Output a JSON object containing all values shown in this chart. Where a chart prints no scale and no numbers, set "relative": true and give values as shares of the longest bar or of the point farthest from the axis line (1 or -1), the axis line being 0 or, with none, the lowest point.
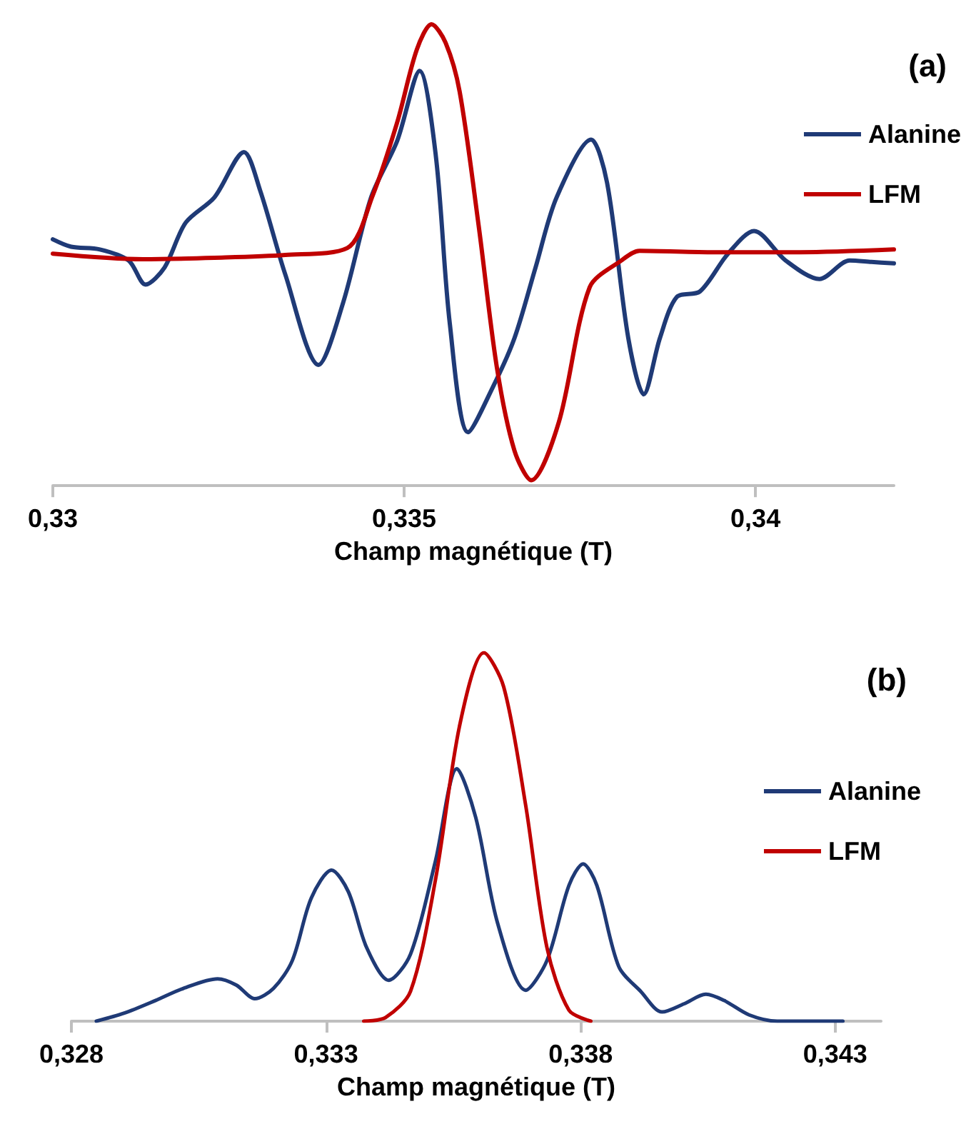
{
  "chart_data": [
    {
      "type": "line",
      "title": "(a)",
      "xlabel": "Champ magnétique (T)",
      "relative": true,
      "grid": false,
      "legend": "right",
      "marker": "none",
      "line_style": "solid",
      "tick_labels": "x",
      "xlim": [
        0.33,
        0.34197
      ],
      "xticks": [
        {
          "value": 0.33,
          "label": "0,33"
        },
        {
          "value": 0.335,
          "label": "0,335"
        },
        {
          "value": 0.34,
          "label": "0,34"
        }
      ],
      "series": [
        {
          "name": "Alanine",
          "color": "#1f3a76",
          "x": [
            0.33,
            0.33026,
            0.33067,
            0.33108,
            0.33132,
            0.33159,
            0.33189,
            0.3323,
            0.33272,
            0.33295,
            0.33331,
            0.33378,
            0.33413,
            0.33453,
            0.3349,
            0.33522,
            0.33545,
            0.33565,
            0.33591,
            0.33626,
            0.33657,
            0.33687,
            0.33717,
            0.33766,
            0.33789,
            0.33819,
            0.33841,
            0.33864,
            0.33888,
            0.33921,
            0.33961,
            0.33998,
            0.34043,
            0.34091,
            0.34134,
            0.34165,
            0.34197
          ],
          "values": [
            0.534,
            0.518,
            0.512,
            0.488,
            0.436,
            0.473,
            0.57,
            0.625,
            0.723,
            0.64,
            0.457,
            0.262,
            0.396,
            0.625,
            0.747,
            0.899,
            0.716,
            0.351,
            0.116,
            0.213,
            0.32,
            0.473,
            0.625,
            0.75,
            0.655,
            0.32,
            0.198,
            0.32,
            0.409,
            0.421,
            0.503,
            0.552,
            0.488,
            0.448,
            0.488,
            0.485,
            0.482
          ]
        },
        {
          "name": "LFM",
          "color": "#c00000",
          "x": [
            0.33,
            0.33128,
            0.3323,
            0.33331,
            0.33419,
            0.33455,
            0.3349,
            0.33518,
            0.33539,
            0.33559,
            0.33579,
            0.33606,
            0.33632,
            0.33657,
            0.33681,
            0.3372,
            0.33764,
            0.33809,
            0.33835,
            0.33941,
            0.34063,
            0.34197
          ],
          "values": [
            0.503,
            0.491,
            0.494,
            0.5,
            0.515,
            0.628,
            0.787,
            0.945,
            1,
            0.96,
            0.854,
            0.564,
            0.256,
            0.076,
            0.012,
            0.137,
            0.43,
            0.488,
            0.509,
            0.506,
            0.506,
            0.512
          ]
        }
      ]
    },
    {
      "type": "line",
      "title": "(b)",
      "xlabel": "Champ magnétique (T)",
      "relative": true,
      "grid": false,
      "legend": "right",
      "marker": "none",
      "line_style": "solid",
      "tick_labels": "x",
      "xlim": [
        0.328,
        0.3439
      ],
      "xticks": [
        {
          "value": 0.328,
          "label": "0,328"
        },
        {
          "value": 0.333,
          "label": "0,333"
        },
        {
          "value": 0.338,
          "label": "0,338"
        },
        {
          "value": 0.343,
          "label": "0,343"
        }
      ],
      "series": [
        {
          "name": "Alanine",
          "color": "#1f3a76",
          "x": [
            0.32849,
            0.32904,
            0.32965,
            0.3302,
            0.33087,
            0.33124,
            0.3316,
            0.33197,
            0.33234,
            0.33271,
            0.33311,
            0.33344,
            0.3338,
            0.33423,
            0.33466,
            0.33515,
            0.33557,
            0.33594,
            0.33637,
            0.33692,
            0.33734,
            0.33777,
            0.33805,
            0.33832,
            0.33875,
            0.33918,
            0.3396,
            0.34003,
            0.34046,
            0.34082,
            0.34131,
            0.34186,
            0.34315
          ],
          "values": [
            0,
            0.022,
            0.056,
            0.089,
            0.115,
            0.098,
            0.061,
            0.089,
            0.165,
            0.334,
            0.41,
            0.351,
            0.199,
            0.111,
            0.182,
            0.435,
            0.685,
            0.553,
            0.266,
            0.084,
            0.165,
            0.368,
            0.427,
            0.368,
            0.148,
            0.081,
            0.025,
            0.047,
            0.073,
            0.056,
            0.017,
            0,
            0
          ]
        },
        {
          "name": "LFM",
          "color": "#c00000",
          "x": [
            0.33374,
            0.33417,
            0.33466,
            0.33515,
            0.33563,
            0.3361,
            0.33649,
            0.33692,
            0.33734,
            0.33777,
            0.3382
          ],
          "values": [
            0,
            0.01,
            0.081,
            0.384,
            0.806,
            1,
            0.907,
            0.587,
            0.199,
            0.03,
            0
          ]
        }
      ]
    }
  ]
}
